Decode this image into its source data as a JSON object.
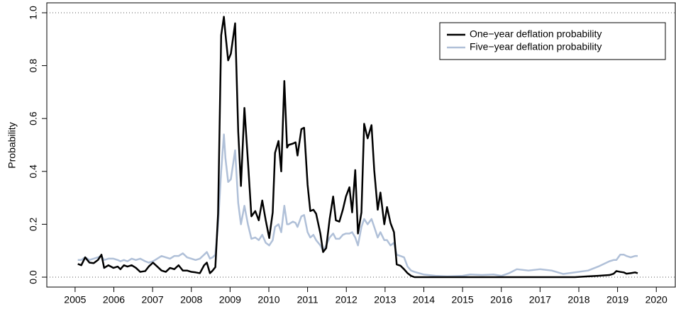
{
  "chart_data": {
    "type": "line",
    "y_label": "Probability",
    "x": [
      2005.07,
      2005.16,
      2005.26,
      2005.37,
      2005.48,
      2005.59,
      2005.68,
      2005.75,
      2005.86,
      2005.99,
      2006.1,
      2006.17,
      2006.26,
      2006.35,
      2006.46,
      2006.57,
      2006.68,
      2006.81,
      2006.9,
      2007.01,
      2007.12,
      2007.23,
      2007.34,
      2007.45,
      2007.56,
      2007.67,
      2007.78,
      2007.89,
      2008.0,
      2008.11,
      2008.22,
      2008.33,
      2008.4,
      2008.48,
      2008.55,
      2008.62,
      2008.69,
      2008.77,
      2008.84,
      2008.88,
      2008.95,
      2009.02,
      2009.13,
      2009.21,
      2009.28,
      2009.37,
      2009.46,
      2009.55,
      2009.65,
      2009.74,
      2009.83,
      2009.92,
      2010.01,
      2010.1,
      2010.16,
      2010.25,
      2010.32,
      2010.4,
      2010.47,
      2010.51,
      2010.62,
      2010.69,
      2010.74,
      2010.84,
      2010.91,
      2011.0,
      2011.07,
      2011.15,
      2011.22,
      2011.33,
      2011.4,
      2011.48,
      2011.57,
      2011.66,
      2011.73,
      2011.82,
      2011.91,
      2011.99,
      2012.08,
      2012.15,
      2012.23,
      2012.3,
      2012.39,
      2012.46,
      2012.55,
      2012.65,
      2012.72,
      2012.81,
      2012.88,
      2012.98,
      2013.05,
      2013.14,
      2013.23,
      2013.3,
      2013.4,
      2013.49,
      2013.58,
      2013.67,
      2013.76,
      2014.0,
      2014.3,
      2014.6,
      2015.0,
      2015.2,
      2015.5,
      2015.8,
      2016.0,
      2016.2,
      2016.4,
      2016.7,
      2017.0,
      2017.3,
      2017.6,
      2017.9,
      2018.24,
      2018.5,
      2018.79,
      2018.9,
      2018.97,
      2019.07,
      2019.16,
      2019.23,
      2019.34,
      2019.45,
      2019.52
    ],
    "series": [
      {
        "name": "One−year deflation probability",
        "color": "#000000",
        "values": [
          0.05,
          0.045,
          0.075,
          0.055,
          0.053,
          0.065,
          0.085,
          0.035,
          0.045,
          0.035,
          0.04,
          0.03,
          0.045,
          0.04,
          0.045,
          0.035,
          0.02,
          0.023,
          0.04,
          0.055,
          0.04,
          0.025,
          0.02,
          0.035,
          0.03,
          0.045,
          0.025,
          0.025,
          0.02,
          0.018,
          0.015,
          0.045,
          0.055,
          0.015,
          0.025,
          0.038,
          0.24,
          0.915,
          0.985,
          0.92,
          0.82,
          0.845,
          0.96,
          0.55,
          0.345,
          0.64,
          0.44,
          0.23,
          0.25,
          0.215,
          0.29,
          0.215,
          0.148,
          0.245,
          0.47,
          0.515,
          0.4,
          0.742,
          0.49,
          0.5,
          0.505,
          0.51,
          0.46,
          0.56,
          0.565,
          0.35,
          0.25,
          0.255,
          0.24,
          0.165,
          0.095,
          0.11,
          0.22,
          0.305,
          0.215,
          0.21,
          0.255,
          0.305,
          0.34,
          0.245,
          0.405,
          0.165,
          0.245,
          0.58,
          0.525,
          0.575,
          0.405,
          0.255,
          0.32,
          0.2,
          0.265,
          0.205,
          0.17,
          0.048,
          0.043,
          0.03,
          0.015,
          0.005,
          0,
          0,
          0,
          0,
          0,
          0,
          0,
          0,
          0,
          0,
          0,
          0,
          0,
          0,
          0,
          0,
          0.003,
          0.005,
          0.008,
          0.013,
          0.023,
          0.02,
          0.018,
          0.013,
          0.015,
          0.018,
          0.015
        ]
      },
      {
        "name": "Five−year deflation probability",
        "color": "#b0c0d8",
        "values": [
          0.065,
          0.065,
          0.075,
          0.065,
          0.07,
          0.075,
          0.08,
          0.065,
          0.07,
          0.07,
          0.065,
          0.06,
          0.065,
          0.06,
          0.07,
          0.065,
          0.07,
          0.06,
          0.055,
          0.06,
          0.07,
          0.08,
          0.075,
          0.07,
          0.08,
          0.08,
          0.09,
          0.075,
          0.07,
          0.065,
          0.07,
          0.085,
          0.095,
          0.07,
          0.075,
          0.085,
          0.2,
          0.4,
          0.54,
          0.45,
          0.36,
          0.37,
          0.48,
          0.28,
          0.2,
          0.27,
          0.2,
          0.145,
          0.15,
          0.14,
          0.16,
          0.13,
          0.12,
          0.14,
          0.19,
          0.2,
          0.17,
          0.27,
          0.2,
          0.2,
          0.21,
          0.205,
          0.19,
          0.23,
          0.235,
          0.17,
          0.15,
          0.16,
          0.14,
          0.12,
          0.1,
          0.12,
          0.15,
          0.165,
          0.145,
          0.145,
          0.16,
          0.165,
          0.165,
          0.17,
          0.15,
          0.12,
          0.19,
          0.22,
          0.2,
          0.22,
          0.19,
          0.15,
          0.17,
          0.14,
          0.14,
          0.12,
          0.13,
          0.085,
          0.08,
          0.075,
          0.04,
          0.025,
          0.02,
          0.01,
          0.005,
          0.003,
          0.005,
          0.01,
          0.008,
          0.01,
          0.005,
          0.015,
          0.03,
          0.025,
          0.03,
          0.025,
          0.012,
          0.018,
          0.025,
          0.04,
          0.06,
          0.065,
          0.065,
          0.085,
          0.085,
          0.08,
          0.075,
          0.08,
          0.08
        ]
      }
    ],
    "xlim": [
      2004.27,
      2020.49
    ],
    "xticks": [
      2005,
      2006,
      2007,
      2008,
      2009,
      2010,
      2011,
      2012,
      2013,
      2014,
      2015,
      2016,
      2017,
      2018,
      2019,
      2020
    ],
    "ylim": [
      -0.0375,
      1.0375
    ],
    "yticks": [
      {
        "value": 0,
        "label": "0.0"
      },
      0.2,
      0.4,
      0.6,
      0.8,
      {
        "value": 1,
        "label": "1.0"
      }
    ],
    "reference_lines": [
      0,
      1
    ],
    "legend": "top-right"
  }
}
